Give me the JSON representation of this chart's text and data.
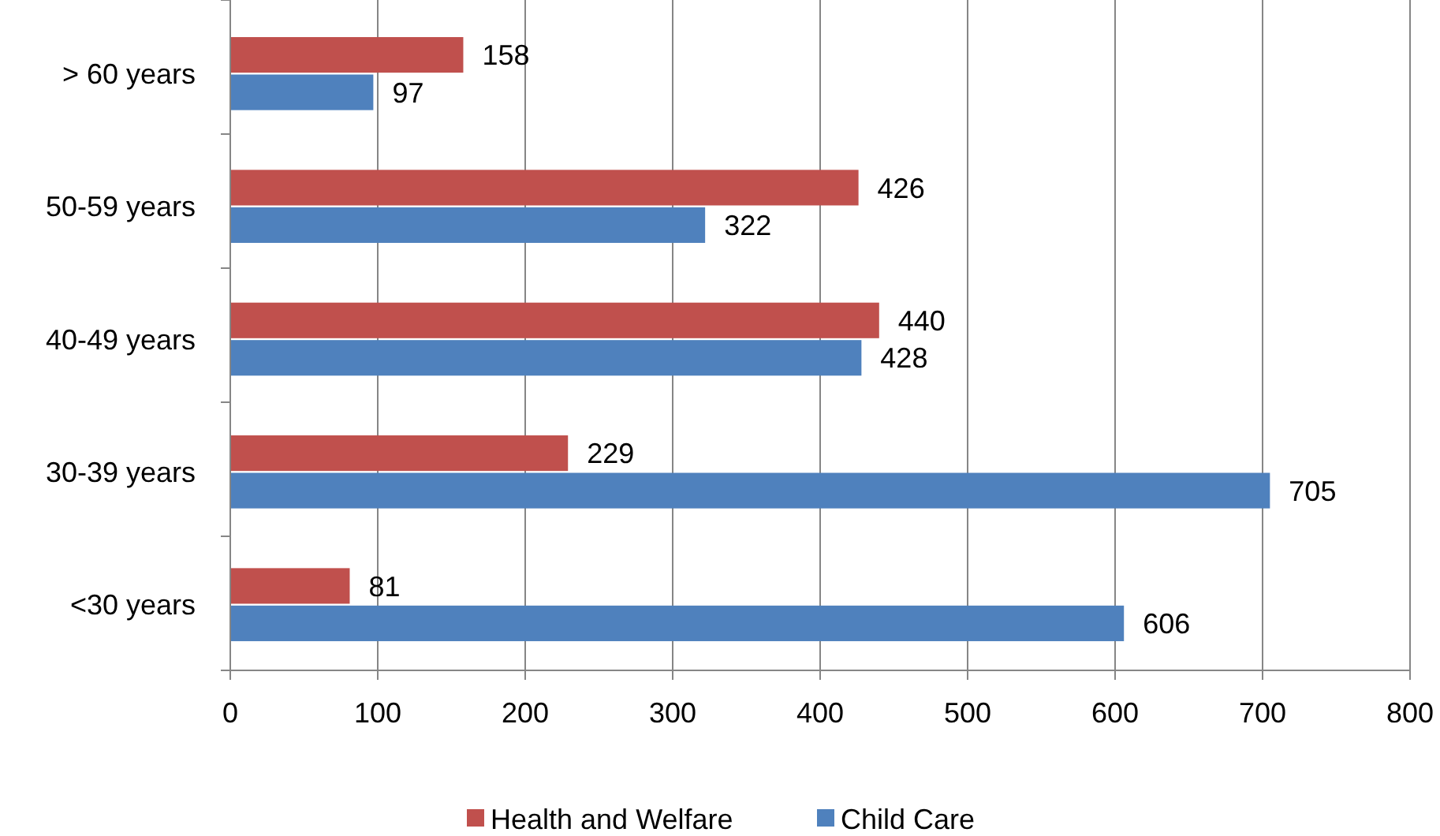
{
  "chart_data": {
    "type": "bar",
    "orientation": "horizontal",
    "categories": [
      "> 60 years",
      "50-59 years",
      "40-49 years",
      "30-39 years",
      "<30 years"
    ],
    "series": [
      {
        "name": "Health and Welfare",
        "color": "#c0504d",
        "values": [
          158,
          426,
          440,
          229,
          81
        ]
      },
      {
        "name": "Child Care",
        "color": "#4f81bd",
        "values": [
          97,
          322,
          428,
          705,
          606
        ]
      }
    ],
    "xlim": [
      0,
      800
    ],
    "xticks": [
      0,
      100,
      200,
      300,
      400,
      500,
      600,
      700,
      800
    ],
    "grid": "x",
    "legend": "bottom",
    "data_labels": true
  }
}
